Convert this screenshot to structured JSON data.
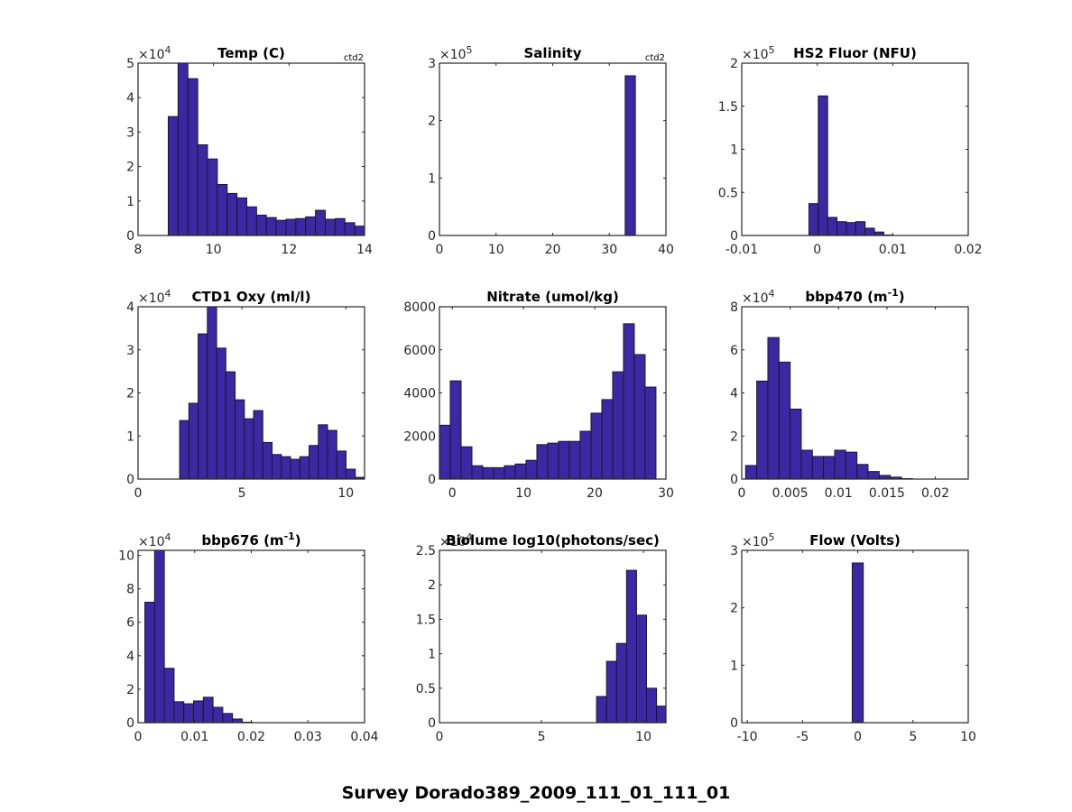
{
  "figure_title": "Survey Dorado389_2009_111_01_111_01",
  "colors": {
    "bar_fill": "#3c28a4",
    "bar_edge": "#1a1a1a",
    "axis": "#262626"
  },
  "chart_data": [
    {
      "type": "bar",
      "id": "temp",
      "title": "Temp (C)",
      "note": "ctd2",
      "exponent": "4",
      "xlim": [
        8,
        14
      ],
      "ylim": [
        0,
        5
      ],
      "xticks": [
        8,
        10,
        12,
        14
      ],
      "xtick_labels": [
        "8",
        "10",
        "12",
        "14"
      ],
      "yticks": [
        0,
        1,
        2,
        3,
        4,
        5
      ],
      "ytick_labels": [
        "0",
        "1",
        "2",
        "3",
        "4",
        "5"
      ],
      "bin_start": 8.8,
      "bin_width": 0.26,
      "values": [
        3.45,
        5.0,
        4.55,
        2.63,
        2.22,
        1.48,
        1.22,
        1.09,
        0.83,
        0.59,
        0.52,
        0.44,
        0.47,
        0.49,
        0.54,
        0.73,
        0.47,
        0.49,
        0.37,
        0.27
      ]
    },
    {
      "type": "bar",
      "id": "salinity",
      "title": "Salinity",
      "note": "ctd2",
      "exponent": "5",
      "xlim": [
        0,
        40
      ],
      "ylim": [
        0,
        3
      ],
      "xticks": [
        0,
        10,
        20,
        30,
        40
      ],
      "xtick_labels": [
        "0",
        "10",
        "20",
        "30",
        "40"
      ],
      "yticks": [
        0,
        1,
        2,
        3
      ],
      "ytick_labels": [
        "0",
        "1",
        "2",
        "3"
      ],
      "bin_start": 32.8,
      "bin_width": 1.8,
      "values": [
        2.78
      ]
    },
    {
      "type": "bar",
      "id": "hs2fluor",
      "title": "HS2 Fluor (NFU)",
      "note": "",
      "exponent": "5",
      "xlim": [
        -0.01,
        0.02
      ],
      "ylim": [
        0,
        2
      ],
      "xticks": [
        -0.01,
        0,
        0.01,
        0.02
      ],
      "xtick_labels": [
        "-0.01",
        "0",
        "0.01",
        "0.02"
      ],
      "yticks": [
        0,
        0.5,
        1,
        1.5,
        2
      ],
      "ytick_labels": [
        "0",
        "0.5",
        "1",
        "1.5",
        "2"
      ],
      "bin_start": -0.0011,
      "bin_width": 0.00124,
      "values": [
        0.37,
        1.62,
        0.21,
        0.16,
        0.15,
        0.16,
        0.085,
        0.04,
        0.006
      ]
    },
    {
      "type": "bar",
      "id": "oxy",
      "title": "CTD1 Oxy (ml/l)",
      "note": "",
      "exponent": "4",
      "xlim": [
        0,
        10.9
      ],
      "ylim": [
        0,
        4
      ],
      "xticks": [
        0,
        5,
        10
      ],
      "xtick_labels": [
        "0",
        "5",
        "10"
      ],
      "yticks": [
        0,
        1,
        2,
        3,
        4
      ],
      "ytick_labels": [
        "0",
        "1",
        "2",
        "3",
        "4"
      ],
      "bin_start": 2.0,
      "bin_width": 0.445,
      "values": [
        1.36,
        1.76,
        3.37,
        4.0,
        3.04,
        2.49,
        1.84,
        1.4,
        1.59,
        0.85,
        0.57,
        0.52,
        0.46,
        0.52,
        0.78,
        1.26,
        1.13,
        0.65,
        0.23,
        0.04
      ]
    },
    {
      "type": "bar",
      "id": "nitrate",
      "title": "Nitrate (umol/kg)",
      "note": "",
      "exponent": "",
      "xlim": [
        -1.8,
        30
      ],
      "ylim": [
        0,
        8000
      ],
      "xticks": [
        0,
        10,
        20,
        30
      ],
      "xtick_labels": [
        "0",
        "10",
        "20",
        "30"
      ],
      "yticks": [
        0,
        2000,
        4000,
        6000,
        8000
      ],
      "ytick_labels": [
        "0",
        "2000",
        "4000",
        "6000",
        "8000"
      ],
      "bin_start": -1.8,
      "bin_width": 1.52,
      "values": [
        2500,
        4560,
        1500,
        620,
        530,
        530,
        620,
        700,
        870,
        1600,
        1670,
        1750,
        1750,
        2220,
        3060,
        3690,
        4980,
        7210,
        5780,
        4270
      ]
    },
    {
      "type": "bar",
      "id": "bbp470",
      "title": "bbp470 (m",
      "title_sup": "-1",
      "title_end": ")",
      "note": "",
      "exponent": "4",
      "xlim": [
        0,
        0.0234
      ],
      "ylim": [
        0,
        8
      ],
      "xticks": [
        0,
        0.005,
        0.01,
        0.015,
        0.02
      ],
      "xtick_labels": [
        "0",
        "0.005",
        "0.01",
        "0.015",
        "0.02"
      ],
      "yticks": [
        0,
        2,
        4,
        6,
        8
      ],
      "ytick_labels": [
        "0",
        "2",
        "4",
        "6",
        "8"
      ],
      "bin_start": 0.0004,
      "bin_width": 0.00115,
      "values": [
        0.63,
        4.55,
        6.57,
        5.43,
        3.25,
        1.34,
        1.05,
        1.05,
        1.34,
        1.25,
        0.68,
        0.35,
        0.17,
        0.09,
        0.02
      ]
    },
    {
      "type": "bar",
      "id": "bbp676",
      "title": "bbp676 (m",
      "title_sup": "-1",
      "title_end": ")",
      "note": "",
      "exponent": "4",
      "xlim": [
        0,
        0.04
      ],
      "ylim": [
        0,
        10.3
      ],
      "xticks": [
        0,
        0.01,
        0.02,
        0.03,
        0.04
      ],
      "xtick_labels": [
        "0",
        "0.01",
        "0.02",
        "0.03",
        "0.04"
      ],
      "yticks": [
        0,
        2,
        4,
        6,
        8,
        10
      ],
      "ytick_labels": [
        "0",
        "2",
        "4",
        "6",
        "8",
        "10"
      ],
      "bin_start": 0.0012,
      "bin_width": 0.00172,
      "values": [
        7.2,
        10.3,
        3.25,
        1.25,
        1.13,
        1.3,
        1.52,
        0.92,
        0.55,
        0.22,
        0.03
      ]
    },
    {
      "type": "bar",
      "id": "biolume",
      "title": "Biolume log10(photons/sec)",
      "note": "",
      "exponent": "4",
      "xlim": [
        0,
        11.1
      ],
      "ylim": [
        0,
        2.5
      ],
      "xticks": [
        0,
        5,
        10
      ],
      "xtick_labels": [
        "0",
        "5",
        "10"
      ],
      "yticks": [
        0,
        0.5,
        1,
        1.5,
        2,
        2.5
      ],
      "ytick_labels": [
        "0",
        "0.5",
        "1",
        "1.5",
        "2",
        "2.5"
      ],
      "bin_start": 7.7,
      "bin_width": 0.49,
      "values": [
        0.38,
        0.89,
        1.15,
        2.21,
        1.56,
        0.5,
        0.24
      ]
    },
    {
      "type": "bar",
      "id": "flow",
      "title": "Flow (Volts)",
      "note": "",
      "exponent": "5",
      "xlim": [
        -10.5,
        10
      ],
      "ylim": [
        0,
        3
      ],
      "xticks": [
        -10,
        -5,
        0,
        5,
        10
      ],
      "xtick_labels": [
        "-10",
        "-5",
        "0",
        "5",
        "10"
      ],
      "yticks": [
        0,
        1,
        2,
        3
      ],
      "ytick_labels": [
        "0",
        "1",
        "2",
        "3"
      ],
      "bin_start": -0.5,
      "bin_width": 1.0,
      "values": [
        2.78
      ]
    }
  ]
}
